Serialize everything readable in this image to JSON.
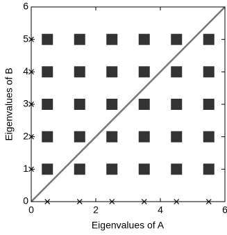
{
  "chart_data": {
    "type": "scatter",
    "xlabel": "Eigenvalues of A",
    "ylabel": "Eigenvalues of B",
    "xlim": [
      0,
      6
    ],
    "ylim": [
      0,
      6
    ],
    "xticks": [
      0,
      2,
      4,
      6
    ],
    "yticks": [
      0,
      1,
      2,
      3,
      4,
      5,
      6
    ],
    "series": [
      {
        "marker": "square",
        "color": "#333333",
        "x": [
          0.5,
          1.5,
          2.5,
          3.5,
          4.5,
          5.5,
          0.5,
          1.5,
          2.5,
          3.5,
          4.5,
          5.5,
          0.5,
          1.5,
          2.5,
          3.5,
          4.5,
          5.5,
          0.5,
          1.5,
          2.5,
          3.5,
          4.5,
          5.5,
          0.5,
          1.5,
          2.5,
          3.5,
          4.5,
          5.5
        ],
        "values": [
          1,
          1,
          1,
          1,
          1,
          1,
          2,
          2,
          2,
          2,
          2,
          2,
          3,
          3,
          3,
          3,
          3,
          3,
          4,
          4,
          4,
          4,
          4,
          4,
          5,
          5,
          5,
          5,
          5,
          5
        ]
      },
      {
        "marker": "x",
        "color": "#222222",
        "x": [
          0.5,
          1.5,
          2.5,
          3.5,
          4.5,
          5.5
        ],
        "values": [
          0,
          0,
          0,
          0,
          0,
          0
        ]
      },
      {
        "marker": "x",
        "color": "#222222",
        "x": [
          0,
          0,
          0,
          0,
          0
        ],
        "values": [
          1,
          2,
          3,
          4,
          5
        ]
      },
      {
        "marker": "line",
        "color": "#777777",
        "x": [
          0,
          6
        ],
        "values": [
          0,
          6
        ]
      }
    ]
  }
}
